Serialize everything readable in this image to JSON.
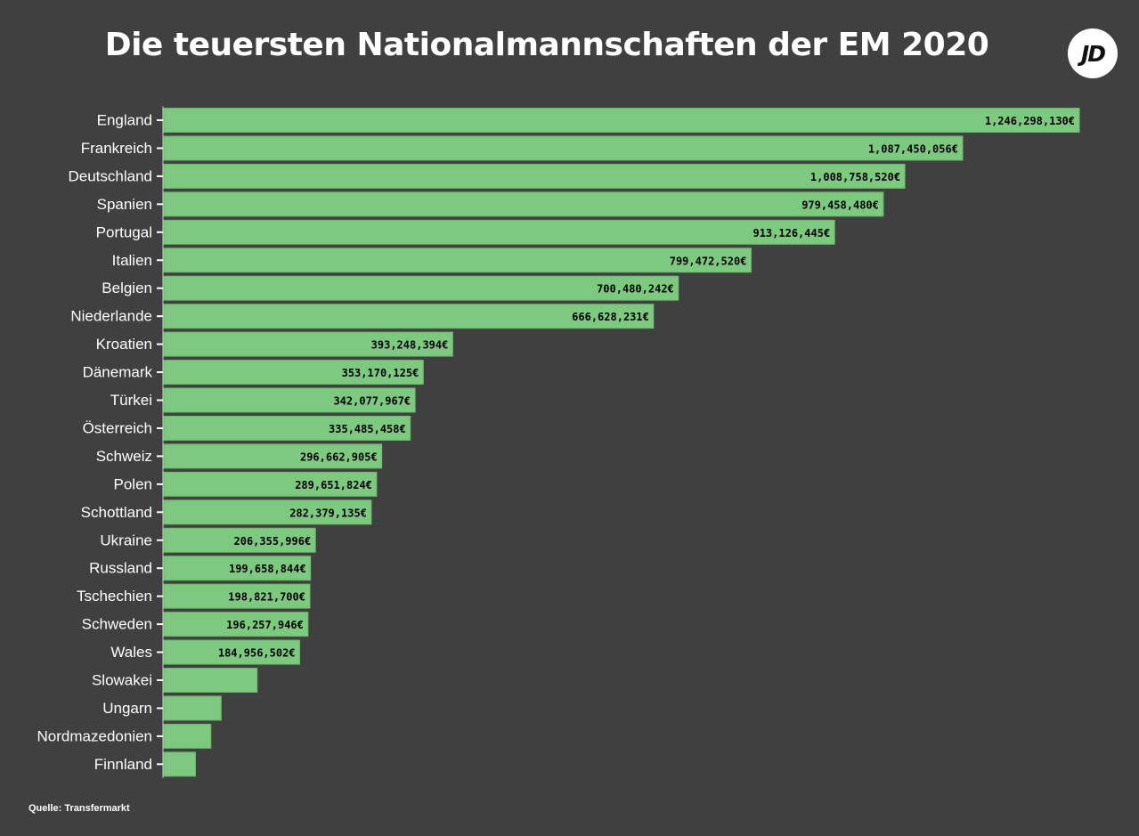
{
  "colors": {
    "background": "#404040",
    "bar": "#7dc97f",
    "bar_stroke": "#6ab86c",
    "text": "#ffffff",
    "value_text": "#000000"
  },
  "logo": {
    "icon": "jd-logo",
    "text": "JD"
  },
  "source": "Quelle: Transfermarkt",
  "chart_data": {
    "type": "bar",
    "orientation": "horizontal",
    "title": "Die teuersten Nationalmannschaften der EM 2020",
    "xlabel": "",
    "ylabel": "",
    "xlim": [
      0,
      1246298130
    ],
    "grid": false,
    "legend": "none",
    "categories": [
      "England",
      "Frankreich",
      "Deutschland",
      "Spanien",
      "Portugal",
      "Italien",
      "Belgien",
      "Niederlande",
      "Kroatien",
      "Dänemark",
      "Türkei",
      "Österreich",
      "Schweiz",
      "Polen",
      "Schottland",
      "Ukraine",
      "Russland",
      "Tschechien",
      "Schweden",
      "Wales",
      "Slowakei",
      "Ungarn",
      "Nordmazedonien",
      "Finnland"
    ],
    "values": [
      1246298130,
      1087450056,
      1008758520,
      979458480,
      913126445,
      799472520,
      700480242,
      666628231,
      393248394,
      353170125,
      342077967,
      335485458,
      296662905,
      289651824,
      282379135,
      206355996,
      199658844,
      198821700,
      196257946,
      184956502,
      127000000,
      78000000,
      64000000,
      43000000
    ],
    "value_labels": [
      "1,246,298,130€",
      "1,087,450,056€",
      "1,008,758,520€",
      "979,458,480€",
      "913,126,445€",
      "799,472,520€",
      "700,480,242€",
      "666,628,231€",
      "393,248,394€",
      "353,170,125€",
      "342,077,967€",
      "335,485,458€",
      "296,662,905€",
      "289,651,824€",
      "282,379,135€",
      "206,355,996€",
      "199,658,844€",
      "198,821,700€",
      "196,257,946€",
      "184,956,502€",
      "",
      "",
      "",
      ""
    ]
  }
}
